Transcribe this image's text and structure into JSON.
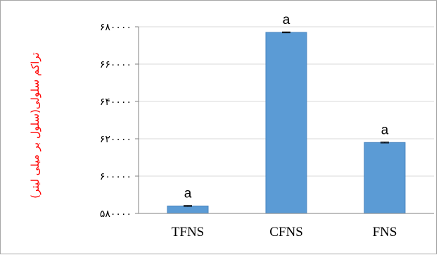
{
  "chart_data": {
    "type": "bar",
    "categories": [
      "TFNS",
      "CFNS",
      "FNS"
    ],
    "values": [
      584000,
      677000,
      618000
    ],
    "error": [
      250,
      250,
      250
    ],
    "data_labels": [
      "a",
      "a",
      "a"
    ],
    "ylabel": "تراکم سلولی(سلول بر میلی لیتر)",
    "ylim": [
      580000,
      680000
    ],
    "yticks": [
      580000,
      600000,
      620000,
      640000,
      660000,
      680000
    ],
    "ytick_labels": [
      "۵۸۰۰۰۰",
      "۶۰۰۰۰۰",
      "۶۲۰۰۰۰",
      "۶۴۰۰۰۰",
      "۶۶۰۰۰۰",
      "۶۸۰۰۰۰"
    ],
    "grid": true,
    "legend": "none",
    "colors": {
      "bar": "#5b9bd5",
      "bar_edge": "#4a86c0",
      "ylabel": "#ff0000",
      "error_bar": "#000000"
    }
  }
}
